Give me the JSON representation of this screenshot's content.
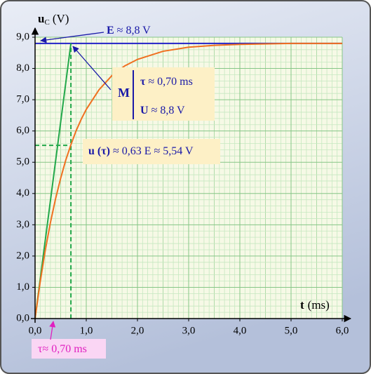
{
  "chart_data": {
    "type": "line",
    "x_label": "t",
    "x_unit": "(ms)",
    "y_label": "u",
    "y_label_sub": "C",
    "y_unit": "(V)",
    "xlim": [
      0,
      6
    ],
    "ylim": [
      0,
      9
    ],
    "xticks": [
      {
        "value": 0,
        "label": "0,0"
      },
      {
        "value": 1,
        "label": "1,0"
      },
      {
        "value": 2,
        "label": "2,0"
      },
      {
        "value": 3,
        "label": "3,0"
      },
      {
        "value": 4,
        "label": "4,0"
      },
      {
        "value": 5,
        "label": "5,0"
      },
      {
        "value": 6,
        "label": "6,0"
      }
    ],
    "yticks": [
      {
        "value": 0,
        "label": "0,0"
      },
      {
        "value": 1,
        "label": "1,0"
      },
      {
        "value": 2,
        "label": "2,0"
      },
      {
        "value": 3,
        "label": "3,0"
      },
      {
        "value": 4,
        "label": "4,0"
      },
      {
        "value": 5,
        "label": "5,0"
      },
      {
        "value": 6,
        "label": "6,0"
      },
      {
        "value": 7,
        "label": "7,0"
      },
      {
        "value": 8,
        "label": "8,0"
      },
      {
        "value": 9,
        "label": "9,0"
      }
    ],
    "grid": true,
    "series": [
      {
        "color": "#2323c8",
        "x": [
          0,
          6
        ],
        "values": [
          8.8,
          8.8
        ]
      },
      {
        "color": "#22a84a",
        "x": [
          0,
          0.7
        ],
        "values": [
          0,
          8.8
        ]
      },
      {
        "color": "#22a84a",
        "dashed": true,
        "x": [
          0.7,
          0.7
        ],
        "values": [
          0,
          8.8
        ]
      },
      {
        "color": "#22a84a",
        "dashed": true,
        "x": [
          0,
          0.7
        ],
        "values": [
          5.54,
          5.54
        ]
      },
      {
        "color": "#f07020",
        "x": [
          0,
          0.1,
          0.2,
          0.3,
          0.4,
          0.5,
          0.6,
          0.7,
          0.8,
          0.9,
          1.0,
          1.25,
          1.5,
          1.75,
          2.0,
          2.5,
          3.0,
          3.5,
          4.0,
          5.0,
          6.0
        ],
        "values": [
          0,
          1.17,
          2.19,
          3.07,
          3.83,
          4.49,
          5.07,
          5.56,
          6.0,
          6.37,
          6.69,
          7.32,
          7.77,
          8.08,
          8.29,
          8.55,
          8.68,
          8.74,
          8.77,
          8.8,
          8.8
        ]
      }
    ],
    "annotations": [
      {
        "parts": [
          {
            "text": "E"
          },
          {
            "text": " ≈ 8,8 V"
          }
        ]
      },
      {
        "label": "M",
        "lines": [
          [
            {
              "text": "τ"
            },
            {
              "text": " ≈ 0,70 ms"
            }
          ],
          [
            {
              "text": "U"
            },
            {
              "text": " ≈ 8,8 V"
            }
          ]
        ]
      },
      {
        "parts": [
          {
            "text": "u (τ)"
          },
          {
            "text": " ≈ 0,63 E ≈ 5,54 V"
          }
        ]
      },
      {
        "parts": [
          {
            "text": "τ≈ 0,70 ms"
          }
        ]
      }
    ]
  }
}
